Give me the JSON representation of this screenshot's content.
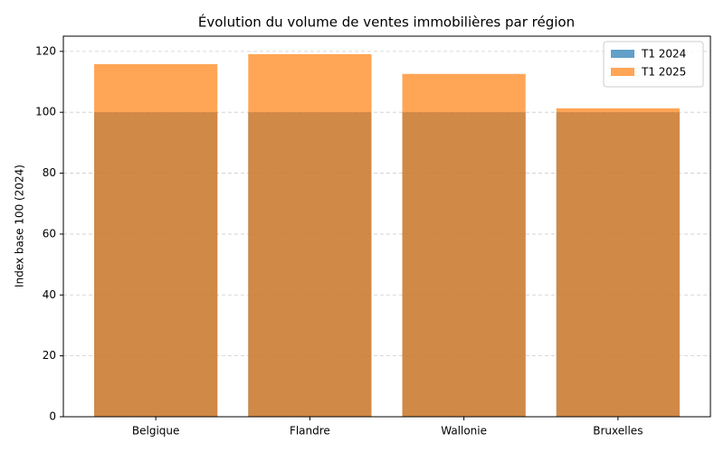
{
  "chart_data": {
    "type": "bar",
    "title": "Évolution du volume de ventes immobilières par région",
    "ylabel": "Index base 100 (2024)",
    "categories": [
      "Belgique",
      "Flandre",
      "Wallonie",
      "Bruxelles"
    ],
    "series": [
      {
        "name": "T1 2024",
        "color": "#1f77b4",
        "values": [
          100,
          100,
          100,
          100
        ]
      },
      {
        "name": "T1 2025",
        "color": "#ff7f0e",
        "values": [
          115.8,
          119.1,
          112.6,
          101.3
        ]
      }
    ],
    "ylim": [
      0,
      125
    ],
    "yticks": [
      0,
      20,
      40,
      60,
      80,
      100,
      120
    ],
    "grid": true,
    "legend": "upper right"
  }
}
